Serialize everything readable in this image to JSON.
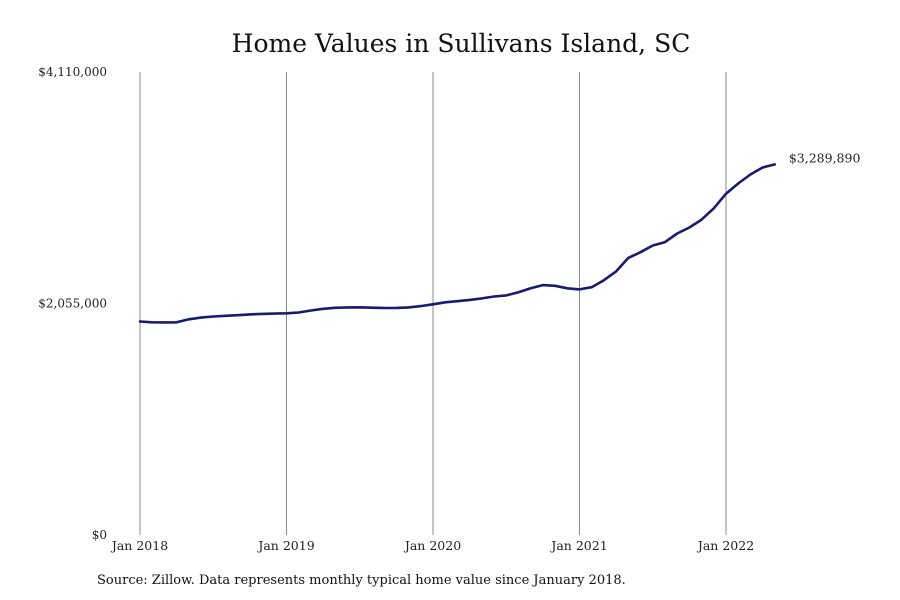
{
  "chart_data": {
    "type": "line",
    "title": "Home Values in Sullivans Island, SC",
    "x": [
      "2018-01",
      "2018-02",
      "2018-03",
      "2018-04",
      "2018-05",
      "2018-06",
      "2018-07",
      "2018-08",
      "2018-09",
      "2018-10",
      "2018-11",
      "2018-12",
      "2019-01",
      "2019-02",
      "2019-03",
      "2019-04",
      "2019-05",
      "2019-06",
      "2019-07",
      "2019-08",
      "2019-09",
      "2019-10",
      "2019-11",
      "2019-12",
      "2020-01",
      "2020-02",
      "2020-03",
      "2020-04",
      "2020-05",
      "2020-06",
      "2020-07",
      "2020-08",
      "2020-09",
      "2020-10",
      "2020-11",
      "2020-12",
      "2021-01",
      "2021-02",
      "2021-03",
      "2021-04",
      "2021-05",
      "2021-06",
      "2021-07",
      "2021-08",
      "2021-09",
      "2021-10",
      "2021-11",
      "2021-12",
      "2022-01",
      "2022-02",
      "2022-03",
      "2022-04",
      "2022-05"
    ],
    "series": [
      {
        "values": [
          1895000,
          1888000,
          1887000,
          1888000,
          1915000,
          1930000,
          1940000,
          1946000,
          1951000,
          1958000,
          1963000,
          1965000,
          1968000,
          1975000,
          1993000,
          2008000,
          2017000,
          2020000,
          2021000,
          2018000,
          2015000,
          2016000,
          2020000,
          2032000,
          2048000,
          2066000,
          2075000,
          2087000,
          2100000,
          2117000,
          2127000,
          2155000,
          2190000,
          2218000,
          2212000,
          2190000,
          2180000,
          2200000,
          2262000,
          2340000,
          2460000,
          2510000,
          2570000,
          2600000,
          2676000,
          2730000,
          2800000,
          2900000,
          3030000,
          3120000,
          3200000,
          3262000,
          3289890
        ]
      }
    ],
    "y_ticks": [
      "$0",
      "$2,055,000",
      "$4,110,000"
    ],
    "y_tick_values": [
      0,
      2055000,
      4110000
    ],
    "ylim": [
      0,
      4110000
    ],
    "x_ticks": [
      "Jan 2018",
      "Jan 2019",
      "Jan 2020",
      "Jan 2021",
      "Jan 2022"
    ],
    "x_tick_values": [
      "2018-01",
      "2019-01",
      "2020-01",
      "2021-01",
      "2022-01"
    ],
    "end_label": "$3,289,890",
    "grid": "vertical lines at each January",
    "line_color": "#1a1a6e"
  },
  "source_note": "Source: Zillow. Data represents monthly typical home value since January 2018."
}
